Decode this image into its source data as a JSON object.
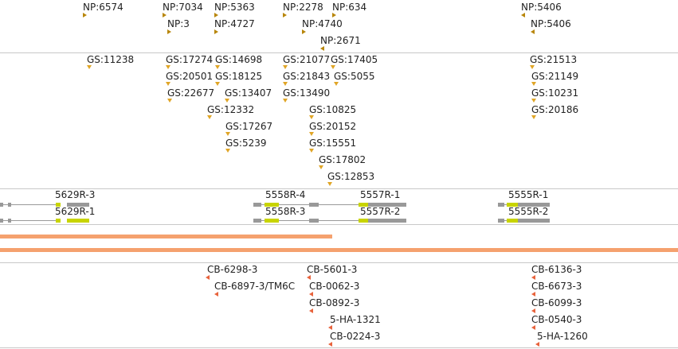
{
  "colors": {
    "np_marker": "#b8860b",
    "gs_marker": "#e0a526",
    "cb_marker": "#e8633c",
    "gene_body": "#999999",
    "gene_cds": "#c8d400",
    "band": "#f5a16e",
    "separator": "#c8c8c8"
  },
  "np_track": [
    "NP:6574",
    "NP:7034",
    "NP:3",
    "NP:5363",
    "NP:4727",
    "NP:2278",
    "NP:634",
    "NP:4740",
    "NP:2671",
    "NP:5406",
    "NP:5406"
  ],
  "gs_track": [
    "GS:11238",
    "GS:17274",
    "GS:14698",
    "GS:20501",
    "GS:18125",
    "GS:22677",
    "GS:13407",
    "GS:12332",
    "GS:17267",
    "GS:5239",
    "GS:21077",
    "GS:17405",
    "GS:21843",
    "GS:5055",
    "GS:13490",
    "GS:10825",
    "GS:20152",
    "GS:15551",
    "GS:17802",
    "GS:12853",
    "GS:21513",
    "GS:21149",
    "GS:10231",
    "GS:20186"
  ],
  "genes": [
    "5629R-3",
    "5629R-1",
    "5558R-4",
    "5558R-3",
    "5557R-1",
    "5557R-2",
    "5555R-1",
    "5555R-2"
  ],
  "cb_track": [
    "CB-6298-3",
    "CB-6897-3/TM6C",
    "CB-5601-3",
    "CB-0062-3",
    "CB-0892-3",
    "5-HA-1321",
    "CB-0224-3",
    "CB-6136-3",
    "CB-6673-3",
    "CB-6099-3",
    "CB-0540-3",
    "5-HA-1260"
  ]
}
